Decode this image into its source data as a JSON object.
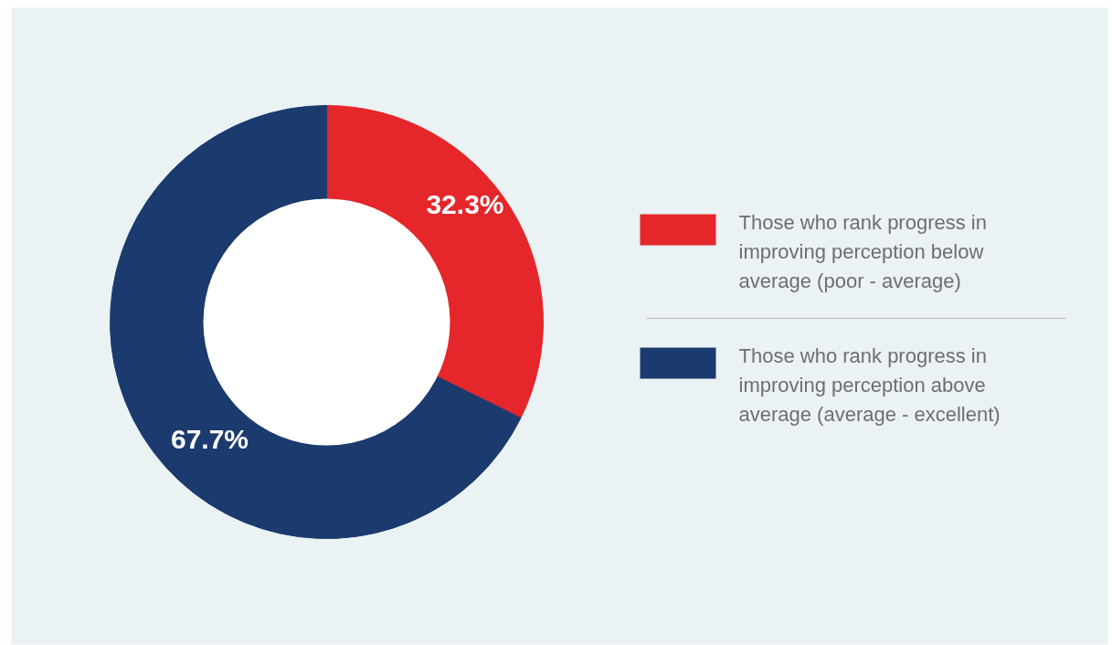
{
  "chart_data": {
    "type": "donut",
    "categories": [
      "Those who rank progress in improving perception below average (poor - average)",
      "Those who rank progress in improving perception above average (average - excellent)"
    ],
    "values": [
      32.3,
      67.7
    ],
    "colors": [
      "#e5262a",
      "#1b3a6e"
    ],
    "value_labels": [
      "32.3%",
      "67.7%"
    ],
    "legend": "right"
  }
}
